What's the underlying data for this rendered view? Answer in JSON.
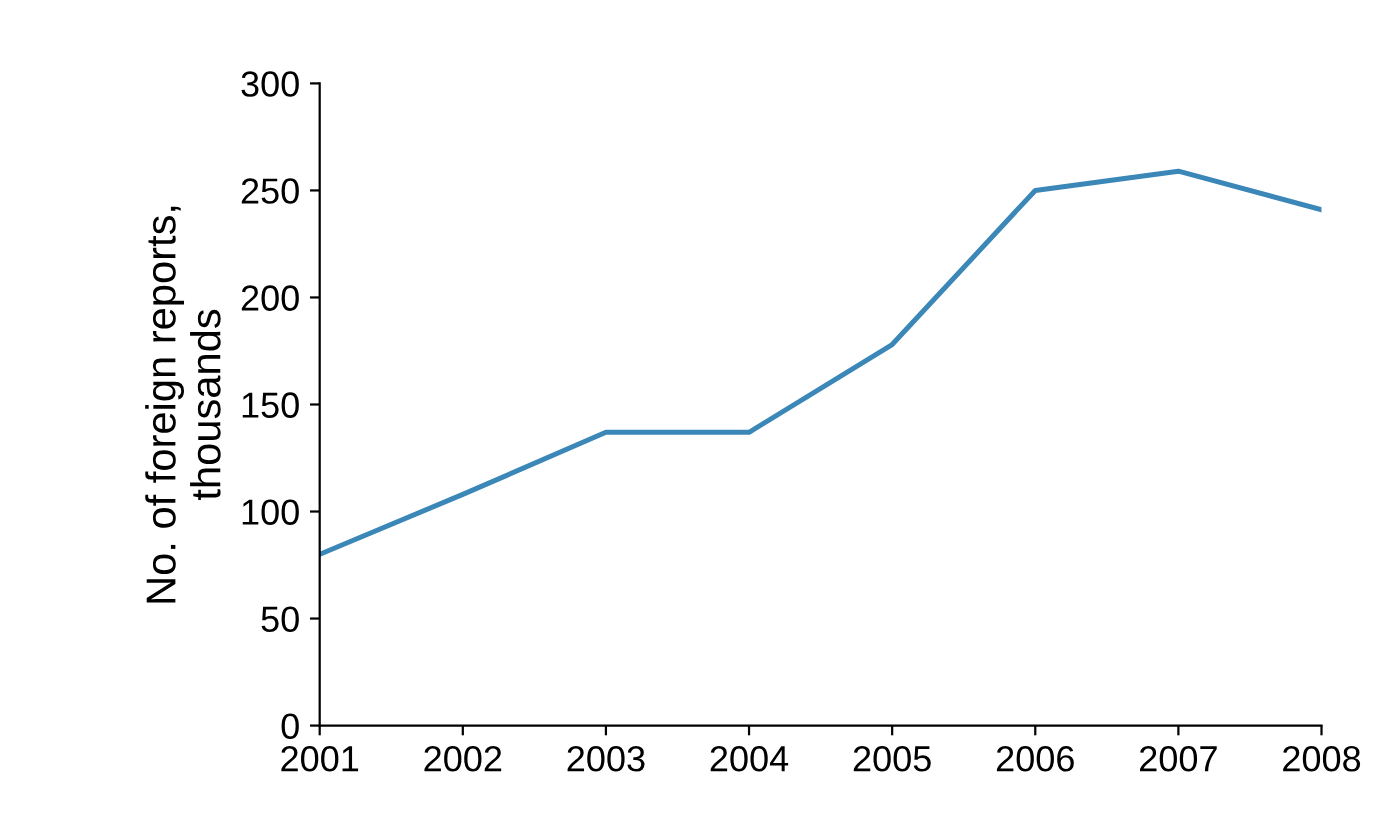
{
  "chart_data": {
    "type": "line",
    "ylabel": "No. of foreign reports,\nthousands",
    "x": [
      2001,
      2002,
      2003,
      2004,
      2005,
      2006,
      2007,
      2008
    ],
    "series": [
      {
        "color": "#3a87b8",
        "values": [
          80,
          108,
          137,
          137,
          178,
          250,
          259,
          241
        ]
      }
    ],
    "xlim": [
      2001,
      2008
    ],
    "xticks": [
      2001,
      2002,
      2003,
      2004,
      2005,
      2006,
      2007,
      2008
    ],
    "ylim": [
      0,
      300
    ],
    "yticks": [
      0,
      50,
      100,
      150,
      200,
      250,
      300
    ],
    "grid": false,
    "legend": false
  }
}
